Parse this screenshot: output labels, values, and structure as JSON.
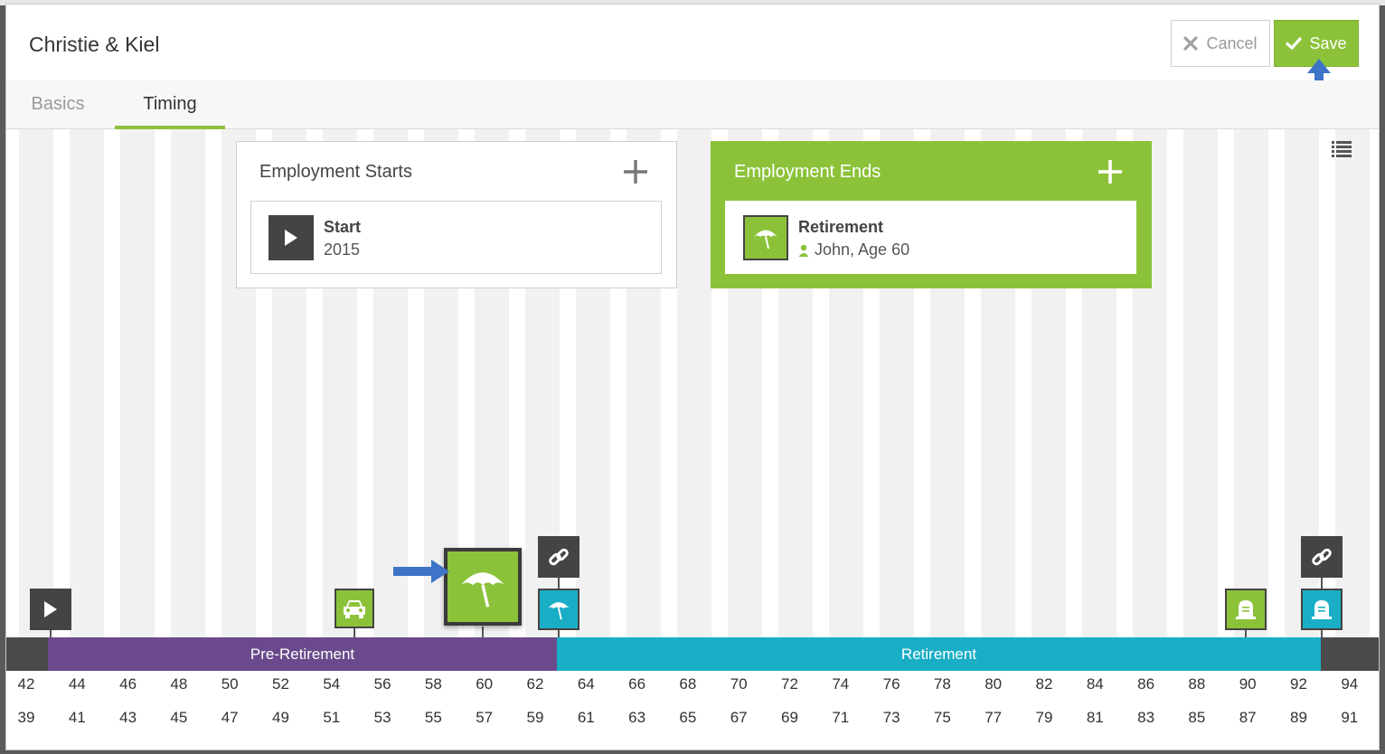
{
  "modal": {
    "title": "Christie & Kiel",
    "cancel_label": "Cancel",
    "save_label": "Save"
  },
  "tabs": [
    {
      "label": "Basics",
      "active": false
    },
    {
      "label": "Timing",
      "active": true
    }
  ],
  "employment_starts": {
    "title": "Employment Starts",
    "item": {
      "title": "Start",
      "subtitle": "2015",
      "icon": "play-icon"
    }
  },
  "employment_ends": {
    "title": "Employment Ends",
    "item": {
      "title": "Retirement",
      "subtitle": "John, Age 60",
      "icon": "umbrella-icon",
      "person_icon": "person-icon"
    }
  },
  "timeline": {
    "segments": [
      {
        "label": "Pre-Retirement",
        "color": "#6a4a8c"
      },
      {
        "label": "Retirement",
        "color": "#1aaec6"
      }
    ],
    "ages_primary": [
      "42",
      "44",
      "46",
      "48",
      "50",
      "52",
      "54",
      "56",
      "58",
      "60",
      "62",
      "64",
      "66",
      "68",
      "70",
      "72",
      "74",
      "76",
      "78",
      "80",
      "82",
      "84",
      "86",
      "88",
      "90",
      "92",
      "94"
    ],
    "ages_secondary": [
      "39",
      "41",
      "43",
      "45",
      "47",
      "49",
      "51",
      "53",
      "55",
      "57",
      "59",
      "61",
      "63",
      "65",
      "67",
      "69",
      "71",
      "73",
      "75",
      "77",
      "79",
      "81",
      "83",
      "85",
      "87",
      "89",
      "91"
    ],
    "markers": [
      {
        "name": "start-marker",
        "icon": "play-icon",
        "color": "#444444"
      },
      {
        "name": "car-marker",
        "icon": "car-icon",
        "color": "#8cc23a"
      },
      {
        "name": "retirement-marker-selected",
        "icon": "umbrella-icon",
        "color": "#8cc23a"
      },
      {
        "name": "link-marker",
        "icon": "link-icon",
        "color": "#444444"
      },
      {
        "name": "spouse-retirement-marker",
        "icon": "umbrella-icon",
        "color": "#1aaec6"
      },
      {
        "name": "death-marker",
        "icon": "tombstone-icon",
        "color": "#8cc23a"
      },
      {
        "name": "link-marker-end",
        "icon": "link-icon",
        "color": "#444444"
      },
      {
        "name": "spouse-death-marker",
        "icon": "tombstone-icon",
        "color": "#1aaec6"
      }
    ]
  },
  "colors": {
    "accent_green": "#8cc23a",
    "teal": "#1aaec6",
    "purple": "#6a4a8c",
    "dark": "#444444"
  }
}
